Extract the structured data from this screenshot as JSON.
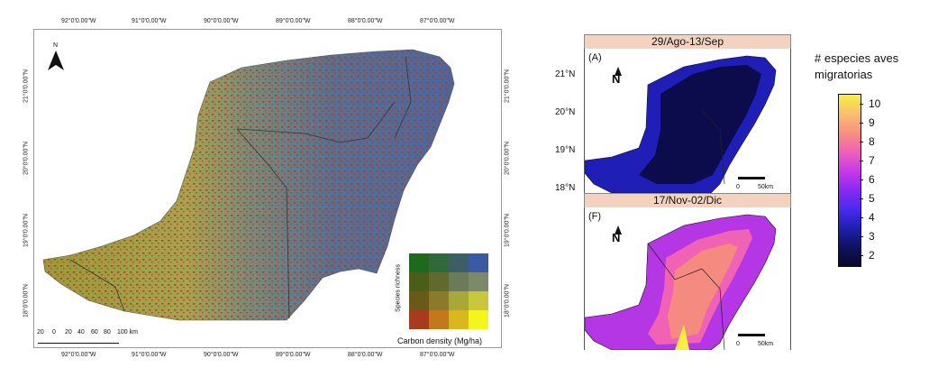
{
  "left_map": {
    "north_label": "N",
    "top_coords": [
      "92°0'0.00\"W",
      "91°0'0.00\"W",
      "90°0'0.00\"W",
      "89°0'0.00\"W",
      "88°0'0.00\"W",
      "87°0'0.00\"W"
    ],
    "bottom_coords": [
      "92°0'0.00\"W",
      "91°0'0.00\"W",
      "90°0'0.00\"W",
      "89°0'0.00\"W",
      "88°0'0.00\"W",
      "87°0'0.00\"W"
    ],
    "side_coords": [
      "21°0'0.00\"N",
      "20°0'0.00\"N",
      "19°0'0.00\"N",
      "18°0'0.00\"N"
    ],
    "scale_labels": [
      "20",
      "0",
      "20",
      "40",
      "60",
      "80",
      "100 km"
    ],
    "legend_y_label": "Species richness",
    "legend_x_label": "Carbon density (Mg/ha)",
    "legend_colors": [
      [
        "#1e6a1c",
        "#2f6a3a",
        "#3b5f62",
        "#3a5ba3"
      ],
      [
        "#4a5e1a",
        "#5f6a2c",
        "#6d7a5a",
        "#7d8a6a"
      ],
      [
        "#6a5a18",
        "#8a7a2a",
        "#a8a83a",
        "#c8c83a"
      ],
      [
        "#a83a1e",
        "#c4781e",
        "#d8b81e",
        "#f4f41e"
      ]
    ]
  },
  "top_right_map": {
    "title": "29/Ago-13/Sep",
    "panel_label": "(A)",
    "lat_labels": [
      "21°N",
      "20°N",
      "19°N",
      "18°N"
    ],
    "north_label": "N",
    "scale_labels": [
      "0",
      "50km"
    ]
  },
  "bottom_right_map": {
    "title": "17/Nov-02/Dic",
    "panel_label": "(F)",
    "north_label": "N",
    "scale_labels": [
      "0",
      "50km"
    ]
  },
  "legend": {
    "title_line1": "# especies aves",
    "title_line2": "migratorias",
    "ticks": [
      "10",
      "9",
      "8",
      "7",
      "6",
      "5",
      "4",
      "3",
      "2"
    ],
    "min_value": 1.5,
    "max_value": 10.5,
    "colors": [
      "#0a0a2a",
      "#101060",
      "#2020b0",
      "#4a2af0",
      "#8a2af0",
      "#c83ae8",
      "#f060b8",
      "#f89080",
      "#f8c070",
      "#f8f040"
    ]
  }
}
